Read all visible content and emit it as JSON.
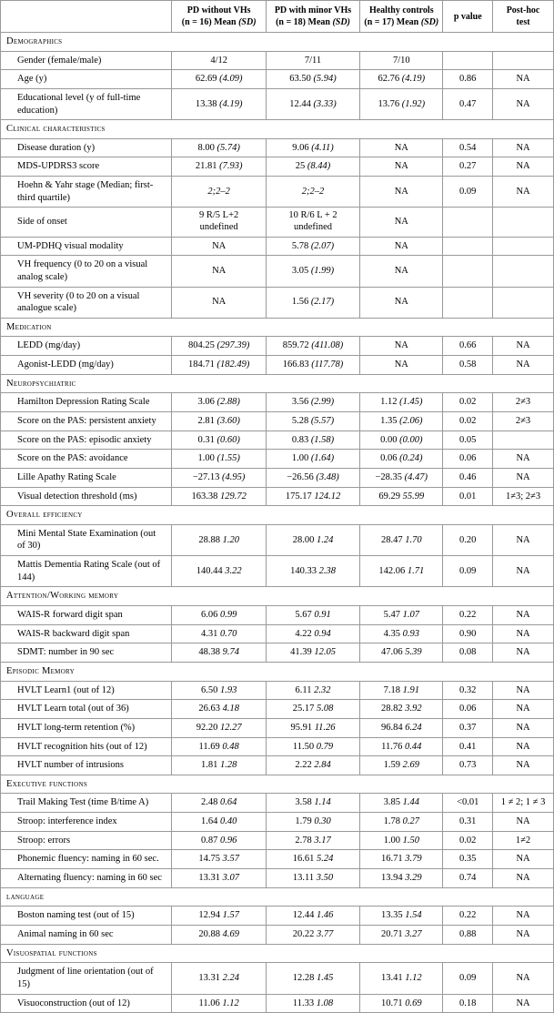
{
  "columns": {
    "h1": {
      "line1": "PD without VHs",
      "line2": "(n = 16) Mean",
      "sd": "(SD)"
    },
    "h2": {
      "line1": "PD with minor VHs",
      "line2": "(n = 18) Mean",
      "sd": "(SD)"
    },
    "h3": {
      "line1": "Healthy controls",
      "line2": "(n = 17) Mean",
      "sd": "(SD)"
    },
    "h4": "p value",
    "h5": {
      "line1": "Post-hoc",
      "line2": "test"
    }
  },
  "sections": [
    {
      "title": "Demographics",
      "rows": [
        {
          "label": "Gender (female/male)",
          "v1": "4/12",
          "v2": "7/11",
          "v3": "7/10",
          "p": "",
          "ph": ""
        },
        {
          "label": "Age (y)",
          "v1": "62.69",
          "sd1": "(4.09)",
          "v2": "63.50",
          "sd2": "(5.94)",
          "v3": "62.76",
          "sd3": "(4.19)",
          "p": "0.86",
          "ph": "NA"
        },
        {
          "label": "Educational level (y of full-time education)",
          "v1": "13.38",
          "sd1": "(4.19)",
          "v2": "12.44",
          "sd2": "(3.33)",
          "v3": "13.76",
          "sd3": "(1.92)",
          "p": "0.47",
          "ph": "NA"
        }
      ]
    },
    {
      "title": "Clinical characteristics",
      "rows": [
        {
          "label": "Disease duration (y)",
          "v1": "8.00",
          "sd1": "(5.74)",
          "v2": "9.06",
          "sd2": "(4.11)",
          "v3": "NA",
          "p": "0.54",
          "ph": "NA"
        },
        {
          "label": "MDS-UPDRS3 score",
          "v1": "21.81",
          "sd1": "(7.93)",
          "v2": "25",
          "sd2": "(8.44)",
          "v3": "NA",
          "p": "0.27",
          "ph": "NA"
        },
        {
          "label": "Hoehn & Yahr stage (Median; first-third quartile)",
          "v1": "2;2–2",
          "v1ital": true,
          "v2": "2;2–2",
          "v2ital": true,
          "v3": "NA",
          "p": "0.09",
          "ph": "NA"
        },
        {
          "label": "Side of onset",
          "v1_multi": [
            "9 R/5 L+2",
            "undefined"
          ],
          "v2_multi": [
            "10 R/6 L + 2",
            "undefined"
          ],
          "v3": "NA",
          "p": "",
          "ph": ""
        },
        {
          "label": "UM-PDHQ visual modality",
          "v1": "NA",
          "v2": "5.78",
          "sd2": "(2.07)",
          "v3": "NA",
          "p": "",
          "ph": ""
        },
        {
          "label": "VH frequency (0 to 20 on a visual analog scale)",
          "v1": "NA",
          "v2": "3.05",
          "sd2": "(1.99)",
          "v3": "NA",
          "p": "",
          "ph": ""
        },
        {
          "label": "VH severity (0 to 20 on a visual analogue scale)",
          "v1": "NA",
          "v2": "1.56",
          "sd2": "(2.17)",
          "v3": "NA",
          "p": "",
          "ph": ""
        }
      ]
    },
    {
      "title": "Medication",
      "rows": [
        {
          "label": "LEDD (mg/day)",
          "v1": "804.25",
          "sd1": "(297.39)",
          "v2": "859.72",
          "sd2": "(411.08)",
          "v3": "NA",
          "p": "0.66",
          "ph": "NA"
        },
        {
          "label": "Agonist-LEDD (mg/day)",
          "v1": "184.71",
          "sd1": "(182.49)",
          "v2": "166.83",
          "sd2": "(117.78)",
          "v3": "NA",
          "p": "0.58",
          "ph": "NA"
        }
      ]
    },
    {
      "title": "Neuropsychiatric",
      "rows": [
        {
          "label": "Hamilton Depression Rating Scale",
          "v1": "3.06",
          "sd1": "(2.88)",
          "v2": "3.56",
          "sd2": "(2.99)",
          "v3": "1.12",
          "sd3": "(1.45)",
          "p": "0.02",
          "ph": "2≠3"
        },
        {
          "label": "Score on the PAS: persistent anxiety",
          "v1": "2.81",
          "sd1": "(3.60)",
          "v2": "5.28",
          "sd2": "(5.57)",
          "v3": "1.35",
          "sd3": "(2.06)",
          "p": "0.02",
          "ph": "2≠3"
        },
        {
          "label": "Score on the PAS: episodic anxiety",
          "v1": "0.31",
          "sd1": "(0.60)",
          "v2": "0.83",
          "sd2": "(1.58)",
          "v3": "0.00",
          "sd3": "(0.00)",
          "p": "0.05",
          "ph": ""
        },
        {
          "label": "Score on the PAS: avoidance",
          "v1": "1.00",
          "sd1": "(1.55)",
          "v2": "1.00",
          "sd2": "(1.64)",
          "v3": "0.06",
          "sd3": "(0.24)",
          "p": "0.06",
          "ph": "NA"
        },
        {
          "label": "Lille Apathy Rating Scale",
          "v1": "−27.13",
          "sd1": "(4.95)",
          "v2": "−26.56",
          "sd2": "(3.48)",
          "v3": "−28.35",
          "sd3": "(4.47)",
          "p": "0.46",
          "ph": "NA"
        },
        {
          "label": "Visual detection threshold (ms)",
          "v1": "163.38",
          "sd1": "129.72",
          "sd1plain": true,
          "v2": "175.17",
          "sd2": "124.12",
          "sd2plain": true,
          "v3": "69.29",
          "sd3": "55.99",
          "sd3plain": true,
          "p": "0.01",
          "ph": "1≠3; 2≠3"
        }
      ]
    },
    {
      "title": "Overall efficiency",
      "rows": [
        {
          "label": "Mini Mental State Examination (out of 30)",
          "v1": "28.88",
          "sd1": "1.20",
          "sd1plain": true,
          "v2": "28.00",
          "sd2": "1.24",
          "sd2plain": true,
          "v3": "28.47",
          "sd3": "1.70",
          "sd3plain": true,
          "p": "0.20",
          "ph": "NA"
        },
        {
          "label": "Mattis Dementia Rating Scale (out of 144)",
          "v1": "140.44",
          "sd1": "3.22",
          "sd1plain": true,
          "v2": "140.33",
          "sd2": "2.38",
          "sd2plain": true,
          "v3": "142.06",
          "sd3": "1.71",
          "sd3plain": true,
          "p": "0.09",
          "ph": "NA"
        }
      ]
    },
    {
      "title": "Attention/Working memory",
      "rows": [
        {
          "label": "WAIS-R forward digit span",
          "v1": "6.06",
          "sd1": "0.99",
          "sd1plain": true,
          "v2": "5.67",
          "sd2": "0.91",
          "sd2plain": true,
          "v3": "5.47",
          "sd3": "1.07",
          "sd3plain": true,
          "p": "0.22",
          "ph": "NA"
        },
        {
          "label": "WAIS-R backward digit span",
          "v1": "4.31",
          "sd1": "0.70",
          "sd1plain": true,
          "v2": "4.22",
          "sd2": "0.94",
          "sd2plain": true,
          "v3": "4.35",
          "sd3": "0.93",
          "sd3plain": true,
          "p": "0.90",
          "ph": "NA"
        },
        {
          "label": "SDMT: number in 90 sec",
          "v1": "48.38",
          "sd1": "9.74",
          "sd1plain": true,
          "v2": "41.39",
          "sd2": "12.05",
          "sd2plain": true,
          "v3": "47.06",
          "sd3": "5.39",
          "sd3plain": true,
          "p": "0.08",
          "ph": "NA"
        }
      ]
    },
    {
      "title": "Episodic Memory",
      "rows": [
        {
          "label": "HVLT Learn1 (out of 12)",
          "v1": "6.50",
          "sd1": "1.93",
          "sd1plain": true,
          "v2": "6.11",
          "sd2": "2.32",
          "sd2plain": true,
          "v3": "7.18",
          "sd3": "1.91",
          "sd3plain": true,
          "p": "0.32",
          "ph": "NA"
        },
        {
          "label": "HVLT Learn total (out of 36)",
          "v1": "26.63",
          "sd1": "4.18",
          "sd1plain": true,
          "v2": "25.17",
          "sd2": "5.08",
          "sd2plain": true,
          "v3": "28.82",
          "sd3": "3.92",
          "sd3plain": true,
          "p": "0.06",
          "ph": "NA"
        },
        {
          "label": "HVLT long-term retention (%)",
          "v1": "92.20",
          "sd1": "12.27",
          "sd1plain": true,
          "v2": "95.91",
          "sd2": "11.26",
          "sd2plain": true,
          "v3": "96.84",
          "sd3": "6.24",
          "sd3plain": true,
          "p": "0.37",
          "ph": "NA"
        },
        {
          "label": "HVLT recognition hits (out of 12)",
          "v1": "11.69",
          "sd1": "0.48",
          "sd1plain": true,
          "v2": "11.50",
          "sd2": "0.79",
          "sd2plain": true,
          "v3": "11.76",
          "sd3": "0.44",
          "sd3plain": true,
          "p": "0.41",
          "ph": "NA"
        },
        {
          "label": "HVLT number of intrusions",
          "v1": "1.81",
          "sd1": "1.28",
          "sd1plain": true,
          "v2": "2.22",
          "sd2": "2.84",
          "sd2plain": true,
          "v3": "1.59",
          "sd3": "2.69",
          "sd3plain": true,
          "p": "0.73",
          "ph": "NA"
        }
      ]
    },
    {
      "title": "Executive functions",
      "rows": [
        {
          "label": "Trail Making Test (time B/time A)",
          "v1": "2.48",
          "sd1": "0.64",
          "sd1plain": true,
          "v2": "3.58",
          "sd2": "1.14",
          "sd2plain": true,
          "v3": "3.85",
          "sd3": "1.44",
          "sd3plain": true,
          "p": "<0.01",
          "ph": "1 ≠ 2; 1 ≠ 3"
        },
        {
          "label": "Stroop: interference index",
          "v1": "1.64",
          "sd1": "0.40",
          "sd1plain": true,
          "v2": "1.79",
          "sd2": "0.30",
          "sd2plain": true,
          "v3": "1.78",
          "sd3": "0.27",
          "sd3plain": true,
          "p": "0.31",
          "ph": "NA"
        },
        {
          "label": "Stroop: errors",
          "v1": "0.87",
          "sd1": "0.96",
          "sd1plain": true,
          "v2": "2.78",
          "sd2": "3.17",
          "sd2plain": true,
          "v3": "1.00",
          "sd3": "1.50",
          "sd3plain": true,
          "p": "0.02",
          "ph": "1≠2"
        },
        {
          "label": "Phonemic fluency: naming in 60 sec.",
          "v1": "14.75",
          "sd1": "3.57",
          "sd1plain": true,
          "v2": "16.61",
          "sd2": "5.24",
          "sd2plain": true,
          "v3": "16.71",
          "sd3": "3.79",
          "sd3plain": true,
          "p": "0.35",
          "ph": "NA"
        },
        {
          "label": "Alternating fluency: naming in 60 sec",
          "v1": "13.31",
          "sd1": "3.07",
          "sd1plain": true,
          "v2": "13.11",
          "sd2": "3.50",
          "sd2plain": true,
          "v3": "13.94",
          "sd3": "3.29",
          "sd3plain": true,
          "p": "0.74",
          "ph": "NA"
        }
      ]
    },
    {
      "title": "language",
      "rows": [
        {
          "label": "Boston naming test (out of 15)",
          "v1": "12.94",
          "sd1": "1.57",
          "sd1plain": true,
          "v2": "12.44",
          "sd2": "1.46",
          "sd2plain": true,
          "v3": "13.35",
          "sd3": "1.54",
          "sd3plain": true,
          "p": "0.22",
          "ph": "NA"
        },
        {
          "label": "Animal naming in 60 sec",
          "v1": "20.88",
          "sd1": "4.69",
          "sd1plain": true,
          "v2": "20.22",
          "sd2": "3.77",
          "sd2plain": true,
          "v3": "20.71",
          "sd3": "3.27",
          "sd3plain": true,
          "p": "0.88",
          "ph": "NA"
        }
      ]
    },
    {
      "title": "Visuospatial functions",
      "rows": [
        {
          "label": "Judgment of line orientation (out of 15)",
          "v1": "13.31",
          "sd1": "2.24",
          "sd1plain": true,
          "v2": "12.28",
          "sd2": "1.45",
          "sd2plain": true,
          "v3": "13.41",
          "sd3": "1.12",
          "sd3plain": true,
          "p": "0.09",
          "ph": "NA"
        },
        {
          "label": "Visuoconstruction (out of 12)",
          "v1": "11.06",
          "sd1": "1.12",
          "sd1plain": true,
          "v2": "11.33",
          "sd2": "1.08",
          "sd2plain": true,
          "v3": "10.71",
          "sd3": "0.69",
          "sd3plain": true,
          "p": "0.18",
          "ph": "NA"
        }
      ]
    }
  ]
}
